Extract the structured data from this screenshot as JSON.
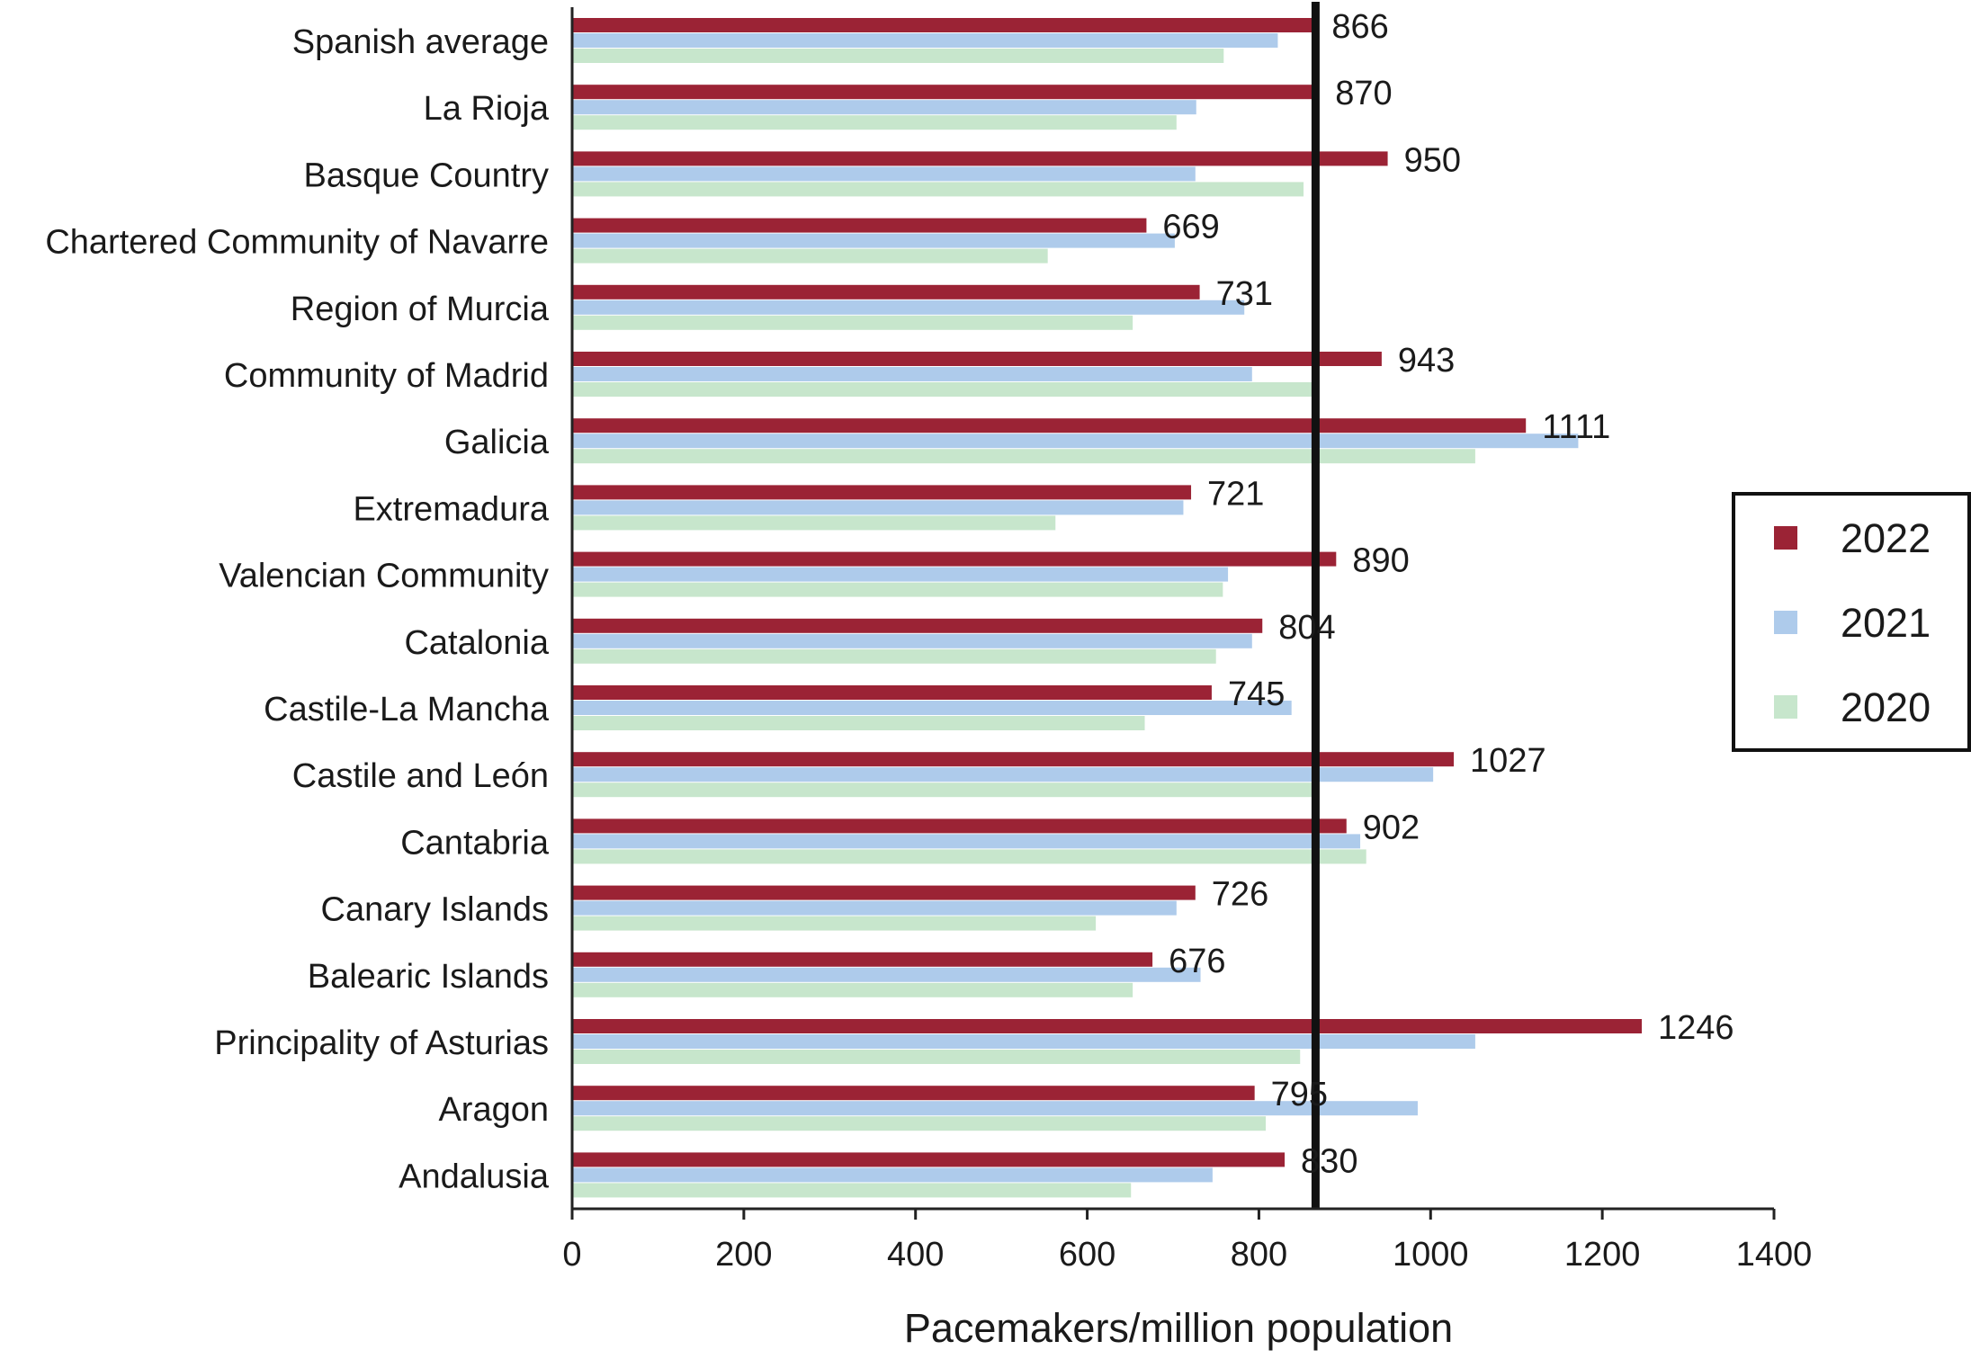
{
  "chart_data": {
    "type": "bar",
    "orientation": "horizontal",
    "categories": [
      "Spanish average",
      "La Rioja",
      "Basque Country",
      "Chartered Community of Navarre",
      "Region of Murcia",
      "Community of Madrid",
      "Galicia",
      "Extremadura",
      "Valencian Community",
      "Catalonia",
      "Castile-La Mancha",
      "Castile and León",
      "Cantabria",
      "Canary Islands",
      "Balearic Islands",
      "Principality of Asturias",
      "Aragon",
      "Andalusia"
    ],
    "series": [
      {
        "name": "2022",
        "color": "#9b2335",
        "values": [
          866,
          870,
          950,
          669,
          731,
          943,
          1111,
          721,
          890,
          804,
          745,
          1027,
          902,
          726,
          676,
          1246,
          795,
          830
        ]
      },
      {
        "name": "2021",
        "color": "#aecbeb",
        "values": [
          822,
          727,
          726,
          702,
          783,
          792,
          1172,
          712,
          764,
          792,
          838,
          1003,
          918,
          704,
          732,
          1052,
          985,
          746
        ]
      },
      {
        "name": "2020",
        "color": "#c7e6cc",
        "values": [
          759,
          704,
          852,
          554,
          653,
          866,
          1052,
          563,
          758,
          750,
          667,
          866,
          925,
          610,
          653,
          848,
          808,
          651
        ]
      }
    ],
    "data_labels": [
      "866",
      "870",
      "950",
      "669",
      "731",
      "943",
      "1111",
      "721",
      "890",
      "804",
      "745",
      "1027",
      "902",
      "726",
      "676",
      "1246",
      "795",
      "830"
    ],
    "reference_line": {
      "value": 866
    },
    "xlabel": "Pacemakers/million population",
    "ylabel": "",
    "xlim": [
      0,
      1400
    ],
    "xticks": [
      "0",
      "200",
      "400",
      "600",
      "800",
      "1000",
      "1200",
      "1400"
    ],
    "grid": false,
    "legend": {
      "placement": "right",
      "entries": [
        "2022",
        "2021",
        "2020"
      ]
    }
  }
}
